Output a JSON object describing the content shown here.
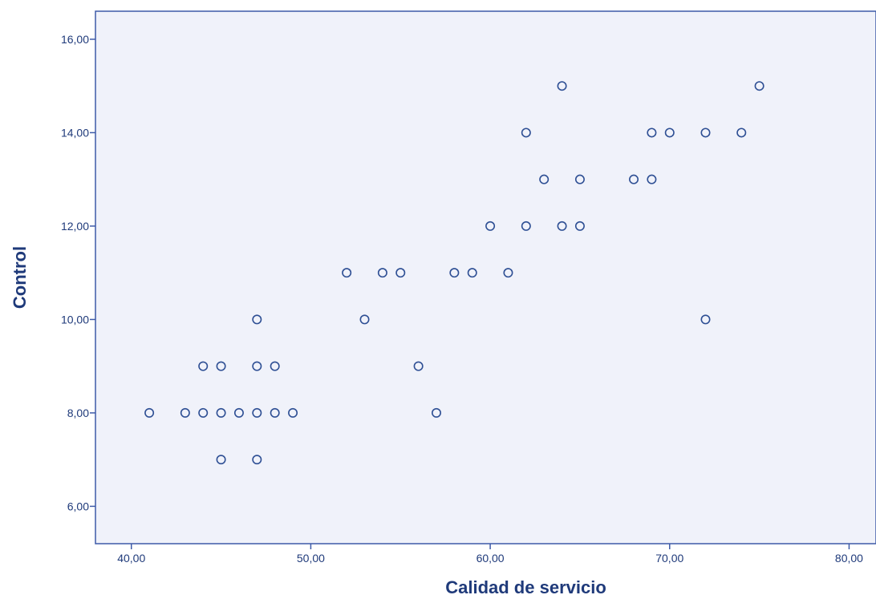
{
  "chart_data": {
    "type": "scatter",
    "title": "",
    "xlabel": "Calidad de servicio",
    "ylabel": "Control",
    "xlim": [
      38.0,
      81.5
    ],
    "ylim": [
      5.2,
      16.6
    ],
    "xticks": [
      "40,00",
      "50,00",
      "60,00",
      "70,00",
      "80,00"
    ],
    "xtick_values": [
      40,
      50,
      60,
      70,
      80
    ],
    "yticks": [
      "6,00",
      "8,00",
      "10,00",
      "12,00",
      "14,00",
      "16,00"
    ],
    "ytick_values": [
      6,
      8,
      10,
      12,
      14,
      16
    ],
    "grid": false,
    "marker": "open-circle",
    "colors": {
      "plot_background": "#f0f2fa",
      "axis": "#3d5aa8",
      "marker": "#2e4f94",
      "text": "#1f3a7a"
    },
    "points": [
      {
        "x": 41,
        "y": 8
      },
      {
        "x": 43,
        "y": 8
      },
      {
        "x": 44,
        "y": 8
      },
      {
        "x": 45,
        "y": 8
      },
      {
        "x": 46,
        "y": 8
      },
      {
        "x": 47,
        "y": 8
      },
      {
        "x": 48,
        "y": 8
      },
      {
        "x": 49,
        "y": 8
      },
      {
        "x": 57,
        "y": 8
      },
      {
        "x": 45,
        "y": 7
      },
      {
        "x": 47,
        "y": 7
      },
      {
        "x": 44,
        "y": 9
      },
      {
        "x": 45,
        "y": 9
      },
      {
        "x": 47,
        "y": 9
      },
      {
        "x": 48,
        "y": 9
      },
      {
        "x": 56,
        "y": 9
      },
      {
        "x": 47,
        "y": 10
      },
      {
        "x": 53,
        "y": 10
      },
      {
        "x": 72,
        "y": 10
      },
      {
        "x": 52,
        "y": 11
      },
      {
        "x": 54,
        "y": 11
      },
      {
        "x": 55,
        "y": 11
      },
      {
        "x": 58,
        "y": 11
      },
      {
        "x": 59,
        "y": 11
      },
      {
        "x": 61,
        "y": 11
      },
      {
        "x": 60,
        "y": 12
      },
      {
        "x": 62,
        "y": 12
      },
      {
        "x": 64,
        "y": 12
      },
      {
        "x": 65,
        "y": 12
      },
      {
        "x": 63,
        "y": 13
      },
      {
        "x": 65,
        "y": 13
      },
      {
        "x": 68,
        "y": 13
      },
      {
        "x": 69,
        "y": 13
      },
      {
        "x": 62,
        "y": 14
      },
      {
        "x": 69,
        "y": 14
      },
      {
        "x": 70,
        "y": 14
      },
      {
        "x": 72,
        "y": 14
      },
      {
        "x": 74,
        "y": 14
      },
      {
        "x": 64,
        "y": 15
      },
      {
        "x": 75,
        "y": 15
      }
    ]
  }
}
